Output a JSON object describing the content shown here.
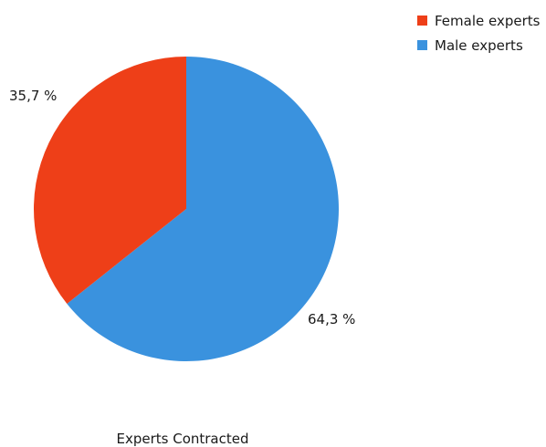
{
  "chart_data": {
    "type": "pie",
    "title": "Experts Contracted",
    "legend_position": "top-right",
    "slices": [
      {
        "name": "Female experts",
        "value": 35.7,
        "label": "35,7 %",
        "color": "#ee3f18"
      },
      {
        "name": "Male experts",
        "value": 64.3,
        "label": "64,3 %",
        "color": "#3a92de"
      }
    ]
  }
}
